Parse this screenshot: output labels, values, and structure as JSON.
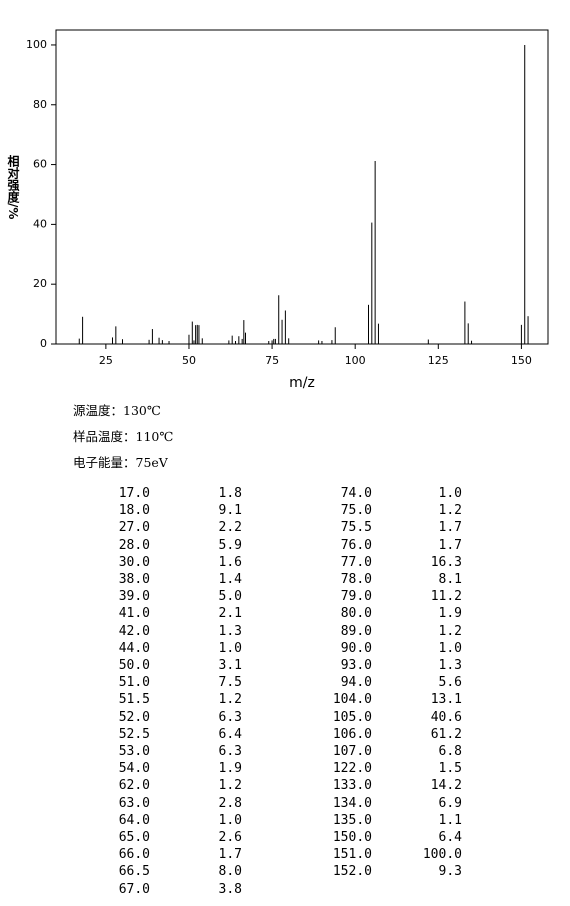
{
  "chart_data": {
    "type": "bar",
    "color": "#000000",
    "xlabel": "m/z",
    "ylabel": "相对强度/%",
    "xlim": [
      10,
      158
    ],
    "ylim": [
      0,
      105
    ],
    "xticks": [
      25,
      50,
      75,
      100,
      125,
      150
    ],
    "yticks": [
      0,
      20,
      40,
      60,
      80,
      100
    ],
    "x": [
      17,
      18,
      27,
      28,
      30,
      38,
      39,
      41,
      42,
      44,
      50,
      51,
      51.5,
      52,
      52.5,
      53,
      54,
      62,
      63,
      64,
      65,
      66,
      66.5,
      67,
      74,
      75,
      75.5,
      76,
      77,
      78,
      79,
      80,
      89,
      90,
      93,
      94,
      104,
      105,
      106,
      107,
      122,
      133,
      134,
      135,
      150,
      151,
      152
    ],
    "x_labels": [
      "17.0",
      "18.0",
      "27.0",
      "28.0",
      "30.0",
      "38.0",
      "39.0",
      "41.0",
      "42.0",
      "44.0",
      "50.0",
      "51.0",
      "51.5",
      "52.0",
      "52.5",
      "53.0",
      "54.0",
      "62.0",
      "63.0",
      "64.0",
      "65.0",
      "66.0",
      "66.5",
      "67.0",
      "74.0",
      "75.0",
      "75.5",
      "76.0",
      "77.0",
      "78.0",
      "79.0",
      "80.0",
      "89.0",
      "90.0",
      "93.0",
      "94.0",
      "104.0",
      "105.0",
      "106.0",
      "107.0",
      "122.0",
      "133.0",
      "134.0",
      "135.0",
      "150.0",
      "151.0",
      "152.0"
    ],
    "values": [
      1.8,
      9.1,
      2.2,
      5.9,
      1.6,
      1.4,
      5.0,
      2.1,
      1.3,
      1.0,
      3.1,
      7.5,
      1.2,
      6.3,
      6.4,
      6.3,
      1.9,
      1.2,
      2.8,
      1.0,
      2.6,
      1.7,
      8.0,
      3.8,
      1.0,
      1.2,
      1.7,
      1.7,
      16.3,
      8.1,
      11.2,
      1.9,
      1.2,
      1.0,
      1.3,
      5.6,
      13.1,
      40.6,
      61.2,
      6.8,
      1.5,
      14.2,
      6.9,
      1.1,
      6.4,
      100.0,
      9.3
    ],
    "value_labels": [
      "1.8",
      "9.1",
      "2.2",
      "5.9",
      "1.6",
      "1.4",
      "5.0",
      "2.1",
      "1.3",
      "1.0",
      "3.1",
      "7.5",
      "1.2",
      "6.3",
      "6.4",
      "6.3",
      "1.9",
      "1.2",
      "2.8",
      "1.0",
      "2.6",
      "1.7",
      "8.0",
      "3.8",
      "1.0",
      "1.2",
      "1.7",
      "1.7",
      "16.3",
      "8.1",
      "11.2",
      "1.9",
      "1.2",
      "1.0",
      "1.3",
      "5.6",
      "13.1",
      "40.6",
      "61.2",
      "6.8",
      "1.5",
      "14.2",
      "6.9",
      "1.1",
      "6.4",
      "100.0",
      "9.3"
    ]
  },
  "info": [
    "源温度：130℃",
    "样品温度：110℃",
    "电子能量：75eV"
  ]
}
